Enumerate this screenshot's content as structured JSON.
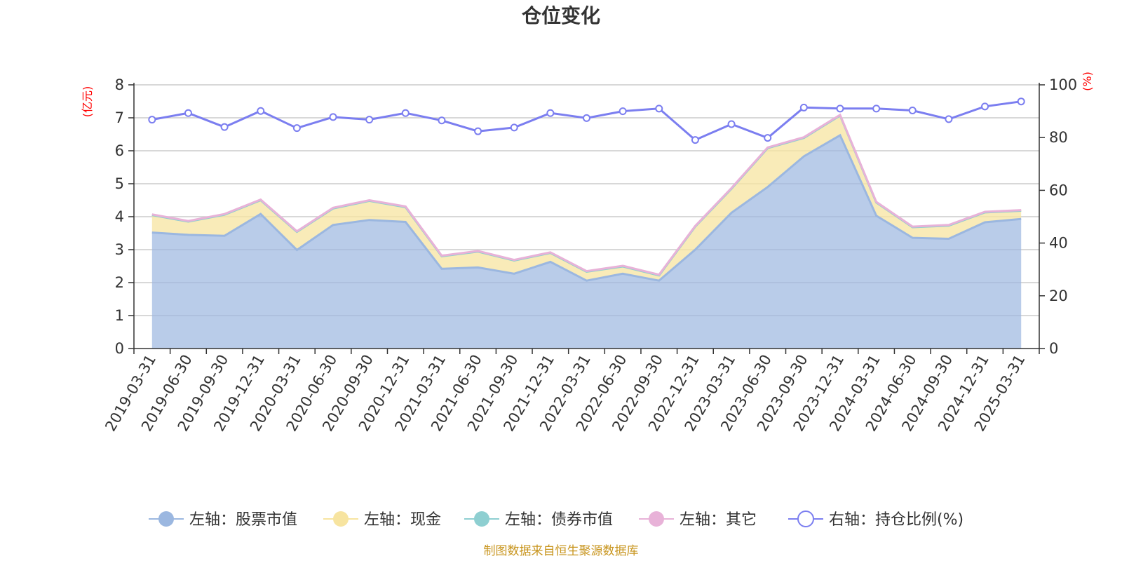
{
  "chart_data": {
    "type": "area",
    "title": "仓位变化",
    "left_axis_unit": "(亿元)",
    "right_axis_unit": "(%)",
    "ylim_left": [
      0,
      8
    ],
    "ylim_right": [
      0,
      100
    ],
    "left_ticks": [
      "0",
      "1",
      "2",
      "3",
      "4",
      "5",
      "6",
      "7",
      "8"
    ],
    "right_ticks": [
      "0",
      "20",
      "40",
      "60",
      "80",
      "100"
    ],
    "categories": [
      "2019-03-31",
      "2019-06-30",
      "2019-09-30",
      "2019-12-31",
      "2020-03-31",
      "2020-06-30",
      "2020-09-30",
      "2020-12-31",
      "2021-03-31",
      "2021-06-30",
      "2021-09-30",
      "2021-12-31",
      "2022-03-31",
      "2022-06-30",
      "2022-09-30",
      "2022-12-31",
      "2023-03-31",
      "2023-06-30",
      "2023-09-30",
      "2023-12-31",
      "2024-03-31",
      "2024-06-30",
      "2024-09-30",
      "2024-12-31",
      "2025-03-31"
    ],
    "series": [
      {
        "name": "左轴：股票市值",
        "axis": "left",
        "stack": true,
        "color": "#9bb7e0",
        "values": [
          3.52,
          3.45,
          3.42,
          4.08,
          2.99,
          3.75,
          3.9,
          3.84,
          2.42,
          2.46,
          2.27,
          2.63,
          2.06,
          2.27,
          2.06,
          3.0,
          4.12,
          4.9,
          5.83,
          6.47,
          4.03,
          3.36,
          3.33,
          3.83,
          3.93
        ]
      },
      {
        "name": "左轴：现金",
        "axis": "left",
        "stack": true,
        "color": "#f7e4a0",
        "values": [
          0.53,
          0.4,
          0.64,
          0.42,
          0.55,
          0.5,
          0.58,
          0.45,
          0.38,
          0.48,
          0.4,
          0.27,
          0.27,
          0.22,
          0.16,
          0.7,
          0.73,
          1.18,
          0.56,
          0.6,
          0.4,
          0.32,
          0.4,
          0.3,
          0.25
        ]
      },
      {
        "name": "左轴：债券市值",
        "axis": "left",
        "stack": true,
        "color": "#8ecfd1",
        "values": [
          0,
          0,
          0,
          0,
          0,
          0,
          0,
          0,
          0,
          0,
          0,
          0,
          0,
          0,
          0,
          0,
          0,
          0,
          0,
          0,
          0,
          0,
          0,
          0,
          0
        ]
      },
      {
        "name": "左轴：其它",
        "axis": "left",
        "stack": true,
        "color": "#e8b2d8",
        "values": [
          0.02,
          0.02,
          0.02,
          0.02,
          0.02,
          0.02,
          0.02,
          0.02,
          0.02,
          0.02,
          0.02,
          0.02,
          0.02,
          0.02,
          0.02,
          0.02,
          0.02,
          0.02,
          0.02,
          0.02,
          0.02,
          0.02,
          0.02,
          0.02,
          0.02
        ]
      },
      {
        "name": "右轴：持仓比例(%)",
        "axis": "right",
        "stack": false,
        "color": "#7b7ef0",
        "values": [
          86.8,
          89.3,
          84.0,
          90.1,
          83.6,
          87.8,
          86.8,
          89.3,
          86.5,
          82.4,
          83.8,
          89.3,
          87.4,
          90.0,
          91.0,
          79.1,
          85.1,
          79.9,
          91.4,
          91.0,
          91.0,
          90.3,
          87.0,
          91.8,
          93.7
        ]
      }
    ],
    "source": "制图数据来自恒生聚源数据库"
  }
}
